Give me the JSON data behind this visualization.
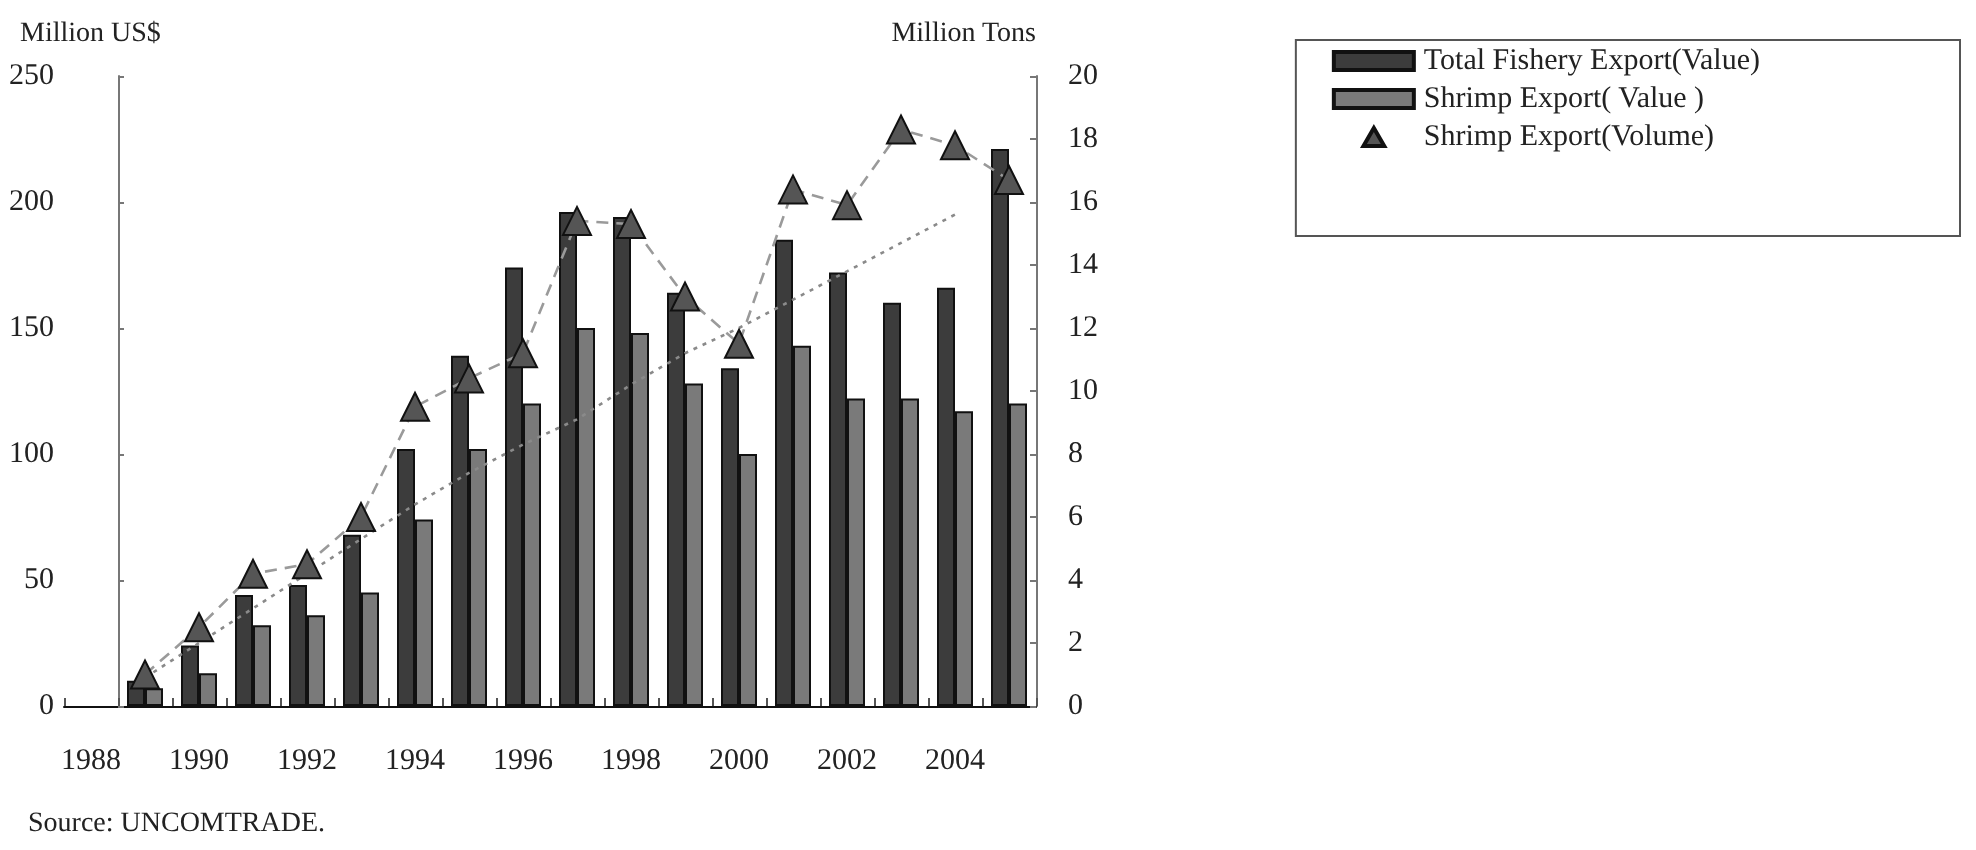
{
  "chart_data": {
    "type": "bar",
    "categories": [
      "1988",
      null,
      "1990",
      null,
      "1992",
      null,
      "1994",
      null,
      "1996",
      null,
      "1998",
      null,
      "2000",
      null,
      "2002",
      null,
      "2004",
      null
    ],
    "series": [
      {
        "name": "Total Fishery Export(Value)",
        "color": "#3c3c3c",
        "values": [
          null,
          10,
          24,
          44,
          48,
          68,
          102,
          139,
          174,
          196,
          194,
          164,
          134,
          185,
          172,
          160,
          166,
          221
        ]
      },
      {
        "name": "Shrimp Export( Value )",
        "color": "#7a7a7a",
        "values": [
          null,
          7,
          13,
          32,
          36,
          45,
          74,
          102,
          120,
          150,
          148,
          128,
          100,
          143,
          122,
          122,
          117,
          120
        ]
      },
      {
        "name": "Shrimp Export(Volume)",
        "type": "line",
        "axis": "y2",
        "color": "#555555",
        "marker": "triangle",
        "line_style": "dashed",
        "values": [
          null,
          1.0,
          2.5,
          4.2,
          4.5,
          6.0,
          9.5,
          10.4,
          11.2,
          15.4,
          15.3,
          13.0,
          11.5,
          16.4,
          15.9,
          18.3,
          17.8,
          16.7
        ]
      },
      {
        "type": "line",
        "axis": "y2",
        "color": "#8a8a8a",
        "marker": "none",
        "line_style": "dotted",
        "values": [
          null,
          0.9,
          2.0,
          3.1,
          4.2,
          5.3,
          6.4,
          7.4,
          8.3,
          9.1,
          10.2,
          11.2,
          12.0,
          12.9,
          13.8,
          14.7,
          15.6,
          null
        ]
      }
    ],
    "ylabel": "Million US$",
    "y2label": "Million Tons",
    "ylim": [
      0,
      250
    ],
    "yticks": [
      0,
      50,
      100,
      150,
      200,
      250
    ],
    "y2lim": [
      0,
      20
    ],
    "y2ticks": [
      0,
      2,
      4,
      6,
      8,
      10,
      12,
      14,
      16,
      18,
      20
    ],
    "legend": "top right",
    "annotations": [
      "Source: UNCOMTRADE."
    ]
  }
}
